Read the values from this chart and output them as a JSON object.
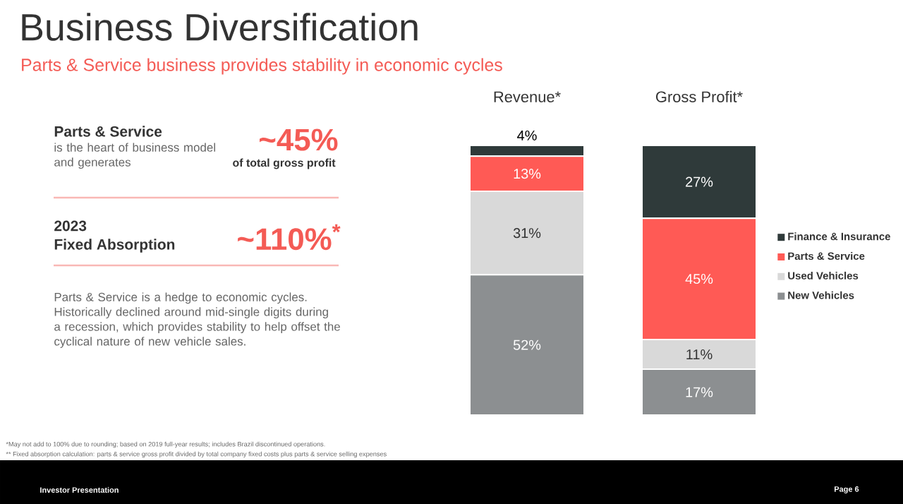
{
  "chart_data": {
    "type": "bar",
    "stacked": true,
    "title": "Business Diversification",
    "subtitle": "Parts & Service business provides stability in economic cycles",
    "categories": [
      "Revenue*",
      "Gross Profit*"
    ],
    "series": [
      {
        "name": "New Vehicles",
        "color": "#8c8f91",
        "values": [
          52,
          17
        ],
        "value_labels": [
          "52%",
          "17%"
        ]
      },
      {
        "name": "Used Vehicles",
        "color": "#d9d9d9",
        "values": [
          31,
          11
        ],
        "value_labels": [
          "31%",
          "11%"
        ]
      },
      {
        "name": "Parts & Service",
        "color": "#ff5a55",
        "values": [
          13,
          45
        ],
        "value_labels": [
          "13%",
          "45%"
        ]
      },
      {
        "name": "Finance & Insurance",
        "color": "#2f3a3a",
        "values": [
          4,
          27
        ],
        "value_labels": [
          "4%",
          "27%"
        ]
      }
    ],
    "legend": "right",
    "annotations": [
      "Parts & Service",
      "is the heart of business model and generates",
      "~45%",
      "of total gross profit",
      "2023",
      "Fixed Absorption",
      "~110%$^{*}$",
      "Parts & Service is a hedge to economic cycles. Historically declined around mid-single digits during a recession, which provides stability to help offset the cyclical nature of new vehicle sales.",
      "*May not add to 100% due to rounding; based on 2019 full-year results; includes Brazil discontinued operations.",
      "** Fixed absorption calculation: parts & service gross profit divided by total company fixed costs plus parts & service selling expenses",
      "Investor Presentation",
      "Page 6"
    ]
  }
}
